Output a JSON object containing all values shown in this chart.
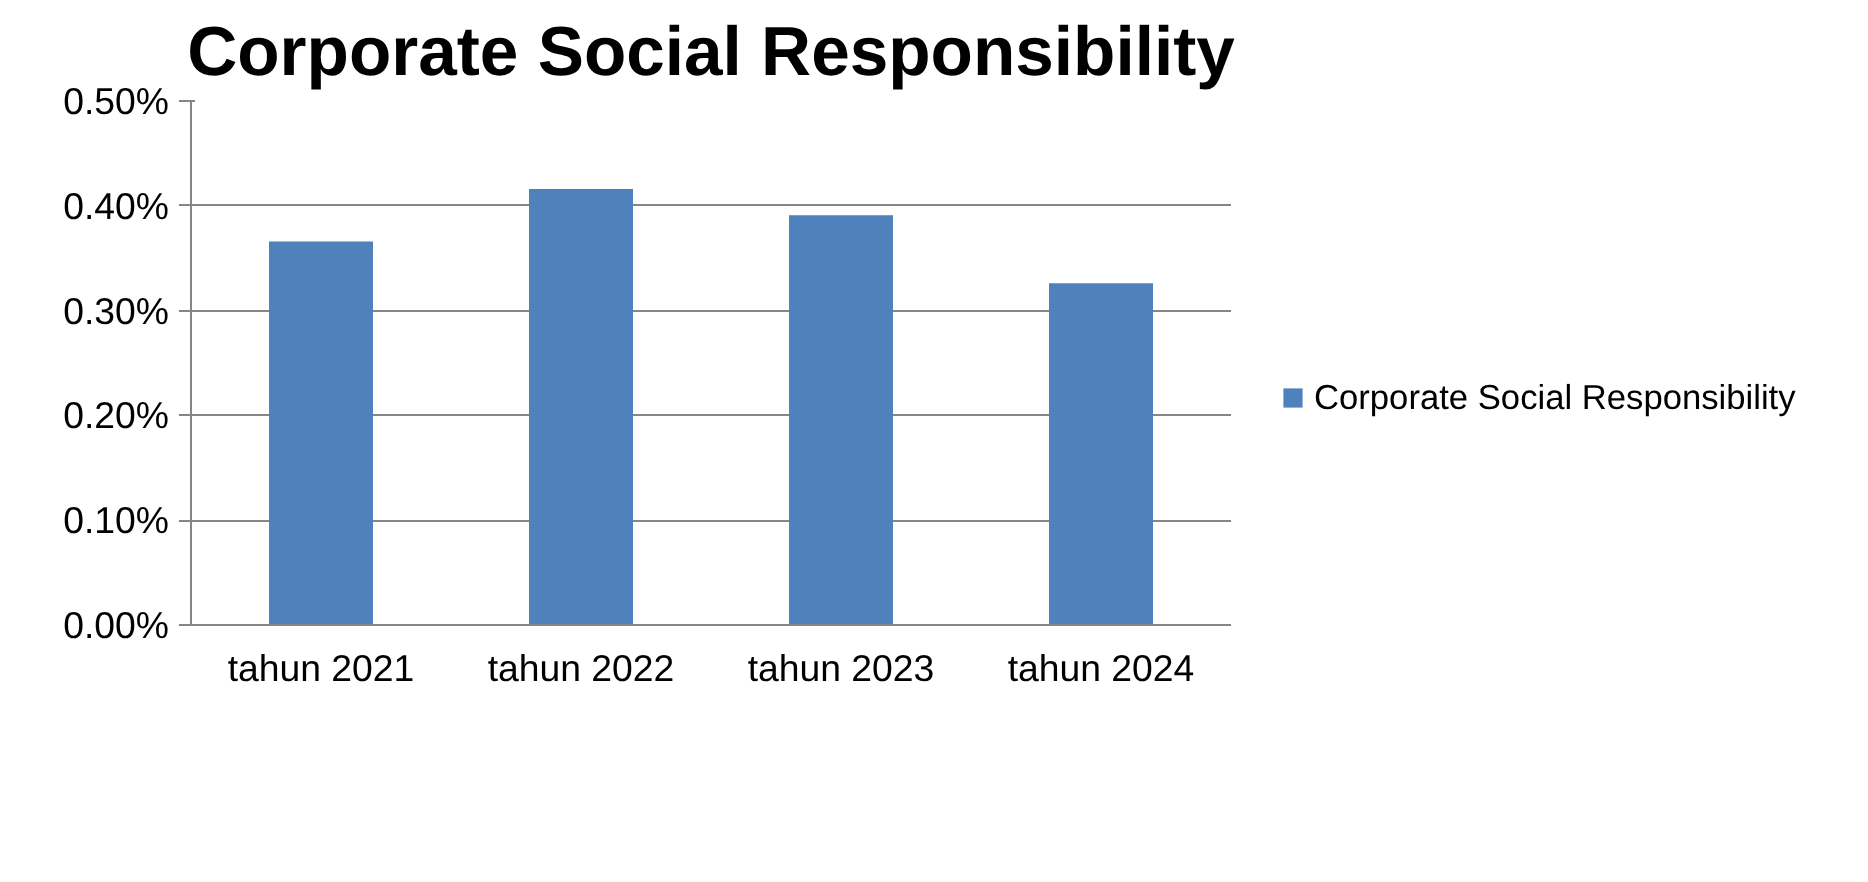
{
  "chart_data": {
    "type": "bar",
    "title": "Corporate Social Responsibility",
    "categories": [
      "tahun 2021",
      "tahun 2022",
      "tahun 2023",
      "tahun 2024"
    ],
    "series": [
      {
        "name": "Corporate Social Responsibility",
        "color": "#4f81bd",
        "values": [
          0.366,
          0.416,
          0.391,
          0.326
        ]
      }
    ],
    "ylim": [
      0,
      0.5
    ],
    "yticks": [
      {
        "value": 0,
        "label": "0.00%"
      },
      {
        "value": 0.1,
        "label": "0.10%"
      },
      {
        "value": 0.2,
        "label": "0.20%"
      },
      {
        "value": 0.3,
        "label": "0.30%"
      },
      {
        "value": 0.4,
        "label": "0.40%"
      },
      {
        "value": 0.5,
        "label": "0.50%"
      }
    ],
    "grid": "y",
    "legend": "right"
  }
}
